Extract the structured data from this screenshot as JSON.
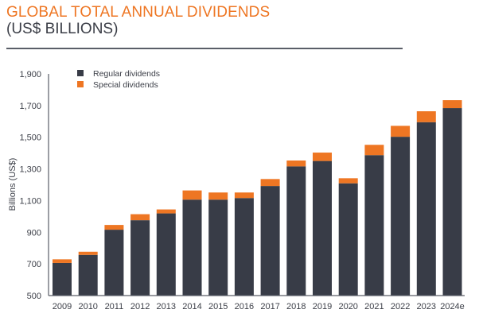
{
  "header": {
    "title_line1": "GLOBAL TOTAL ANNUAL DIVIDENDS",
    "title_line2": "(US$ BILLIONS)"
  },
  "colors": {
    "regular": "#383c47",
    "special": "#ee7623",
    "title_accent": "#ee7623",
    "text": "#3b3e47"
  },
  "chart_data": {
    "type": "bar",
    "stacked": true,
    "title": "GLOBAL TOTAL ANNUAL DIVIDENDS (US$ BILLIONS)",
    "xlabel": "",
    "ylabel": "Billions (US$)",
    "ylim": [
      500,
      1900
    ],
    "yticks": [
      500,
      700,
      900,
      1100,
      1300,
      1500,
      1700,
      1900
    ],
    "ytick_labels": [
      "500",
      "700",
      "900",
      "1,100",
      "1,300",
      "1,500",
      "1,700",
      "1,900"
    ],
    "grid": false,
    "legend_position": "top-left",
    "categories": [
      "2009",
      "2010",
      "2011",
      "2012",
      "2013",
      "2014",
      "2015",
      "2016",
      "2017",
      "2018",
      "2019",
      "2020",
      "2021",
      "2022",
      "2023",
      "2024e"
    ],
    "series": [
      {
        "name": "Regular dividends",
        "values": [
          706,
          757,
          916,
          976,
          1019,
          1106,
          1106,
          1116,
          1192,
          1316,
          1350,
          1209,
          1387,
          1503,
          1595,
          1684
        ]
      },
      {
        "name": "Special dividends",
        "values": [
          23,
          20,
          30,
          38,
          25,
          58,
          45,
          35,
          44,
          37,
          53,
          32,
          65,
          69,
          69,
          50
        ]
      }
    ]
  }
}
